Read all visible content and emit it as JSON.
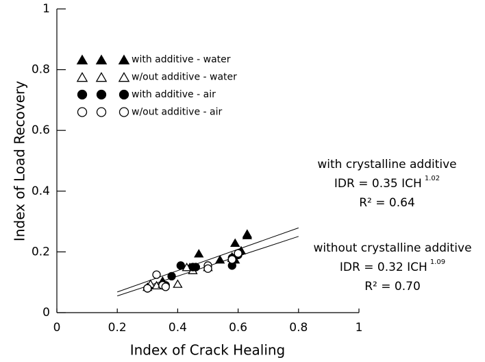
{
  "chart_data": {
    "type": "scatter",
    "x_label": "Index of Crack Healing",
    "y_label": "Index of Load Recovery",
    "xlim": [
      0,
      1
    ],
    "ylim": [
      0,
      1
    ],
    "xticks": [
      0,
      0.2,
      0.4,
      0.6,
      0.8,
      1
    ],
    "yticks": [
      0,
      0.2,
      0.4,
      0.6,
      0.8,
      1
    ],
    "series": [
      {
        "name": "with additive - water",
        "color": "#000000",
        "marker": "triangle",
        "filled": true,
        "x": [
          0.3,
          0.31,
          0.35,
          0.44,
          0.47,
          0.54,
          0.58,
          0.59,
          0.59,
          0.61,
          0.63,
          0.63
        ],
        "values": [
          0.085,
          0.09,
          0.105,
          0.15,
          0.195,
          0.175,
          0.185,
          0.175,
          0.23,
          0.205,
          0.255,
          0.26
        ]
      },
      {
        "name": "w/out additive - water",
        "color": "#000000",
        "marker": "triangle",
        "filled": false,
        "x": [
          0.31,
          0.33,
          0.35,
          0.4,
          0.43,
          0.45,
          0.5,
          0.58
        ],
        "values": [
          0.095,
          0.09,
          0.095,
          0.095,
          0.15,
          0.14,
          0.15,
          0.18
        ]
      },
      {
        "name": "with additive - air",
        "color": "#000000",
        "marker": "circle",
        "filled": true,
        "x": [
          0.3,
          0.36,
          0.38,
          0.41,
          0.45,
          0.46,
          0.58,
          0.58,
          0.6
        ],
        "values": [
          0.08,
          0.09,
          0.12,
          0.155,
          0.15,
          0.15,
          0.155,
          0.18,
          0.19
        ]
      },
      {
        "name": "w/out additive - air",
        "color": "#000000",
        "marker": "circle",
        "filled": false,
        "x": [
          0.3,
          0.33,
          0.35,
          0.36,
          0.5,
          0.5,
          0.58,
          0.6
        ],
        "values": [
          0.08,
          0.125,
          0.09,
          0.085,
          0.155,
          0.145,
          0.175,
          0.195
        ]
      }
    ],
    "fit_lines": [
      {
        "x": [
          0.2,
          0.8
        ],
        "values": [
          0.068,
          0.279
        ],
        "color": "#000000"
      },
      {
        "x": [
          0.2,
          0.8
        ],
        "values": [
          0.055,
          0.251
        ],
        "color": "#000000"
      }
    ],
    "annotations": [
      {
        "title": "with crystalline additive",
        "equation": "IDR = 0.35 ICH",
        "exponent": "1.02",
        "r2": "R² = 0.64"
      },
      {
        "title": "without crystalline additive",
        "equation": "IDR = 0.32 ICH",
        "exponent": "1.09",
        "r2": "R² = 0.70"
      }
    ]
  }
}
